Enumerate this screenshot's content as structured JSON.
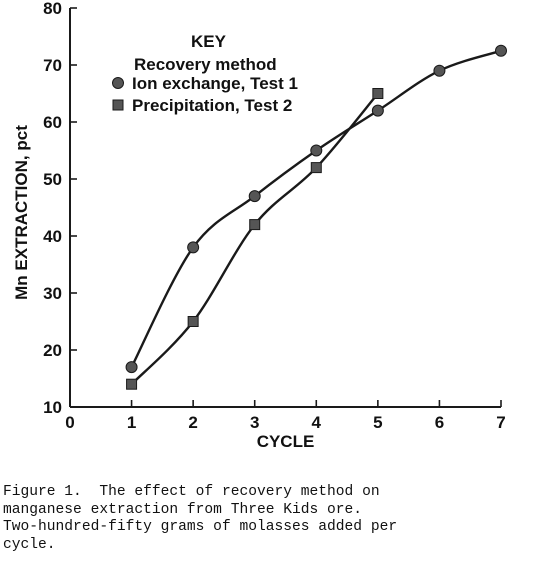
{
  "chart_data": {
    "type": "line",
    "xlabel": "CYCLE",
    "ylabel": "Mn EXTRACTION, pct",
    "xlim": [
      0,
      7
    ],
    "ylim": [
      10,
      80
    ],
    "xticks": [
      "0",
      "1",
      "2",
      "3",
      "4",
      "5",
      "6",
      "7"
    ],
    "yticks": [
      "10",
      "20",
      "30",
      "40",
      "50",
      "60",
      "70",
      "80"
    ],
    "grid": false,
    "legend": {
      "title": "KEY",
      "subtitle": "Recovery method",
      "placement": "top-left"
    },
    "series": [
      {
        "name": "Ion exchange, Test 1",
        "marker": "circle",
        "x": [
          1,
          2,
          3,
          4,
          5,
          6,
          7
        ],
        "y": [
          17,
          38,
          47,
          55,
          62,
          69,
          72.5
        ]
      },
      {
        "name": "Precipitation, Test 2",
        "marker": "square",
        "x": [
          1,
          2,
          3,
          4,
          5
        ],
        "y": [
          14,
          25,
          42,
          52,
          65
        ]
      }
    ],
    "colors": {
      "ink": "#1a1a1a",
      "marker": "#555555"
    }
  },
  "caption": [
    "Figure 1.  The effect of recovery method on",
    "manganese extraction from Three Kids ore.",
    "Two-hundred-fifty grams of molasses added per",
    "cycle."
  ]
}
